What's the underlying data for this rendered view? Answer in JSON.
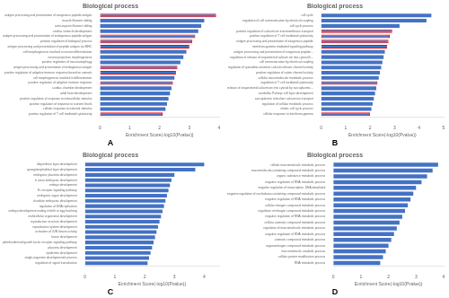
{
  "chart_data": [
    {
      "type": "bar",
      "orientation": "horizontal",
      "title": "Biological process",
      "x_label": "Enrichment Score(-log10(Pvalue))",
      "subtitle": "A",
      "categories": [
        "antigen processing and presentation of exogenous peptide antigen",
        "muscle filament sliding",
        "actin-myosin filament sliding",
        "cardiac ventricle development",
        "antigen processing and presentation of endogenous peptide antigen",
        "positive regulation of biological process",
        "antigen processing and presentation of peptide antigen via MHC",
        "cell morphogenesis involved in neuron differentiation",
        "neuron projection morphogenesis",
        "positive regulation of macroautophagy",
        "antigen processing and presentation of endogenous antigen",
        "positive regulation of adaptive immune response based on somatic",
        "cell morphogenesis involved in differentiation",
        "positive regulation of adaptive immune response",
        "cardiac chamber development",
        "adult heart development",
        "positive regulation of response to extracellular stimulus",
        "positive regulation of response to nutrient levels",
        "cellular response to external stimulus",
        "positive regulation of T cell mediated cytotoxicity"
      ],
      "values": [
        3.9,
        3.5,
        3.4,
        3.3,
        3.2,
        3.1,
        3.0,
        2.9,
        2.8,
        2.7,
        2.6,
        2.55,
        2.5,
        2.45,
        2.4,
        2.35,
        2.3,
        2.25,
        2.2,
        2.1
      ],
      "highlighted": [
        true,
        false,
        false,
        false,
        true,
        true,
        true,
        false,
        false,
        false,
        true,
        true,
        false,
        true,
        false,
        false,
        false,
        false,
        false,
        true
      ],
      "highlight_color": "#ff0000",
      "color": "#4472C4",
      "xlim": [
        0,
        4.0
      ],
      "xticks": [
        0,
        1,
        2,
        3,
        4
      ],
      "grid": false
    },
    {
      "type": "bar",
      "orientation": "horizontal",
      "title": "Biological process",
      "x_label": "Enrichment Score(-log10(Pvalue))",
      "subtitle": "B",
      "categories": [
        "cell cycle",
        "regulation of cell communication by electrical coupling",
        "cell cycle process",
        "positive regulation of calcium ion transmembrane transport",
        "positive regulation of T cell mediated cytotoxicity",
        "antigen processing and presentation of exogenous peptide",
        "interferon-gamma mediated signaling pathway",
        "antigen processing and presentation of exogenous peptide...",
        "regulation of release of sequestered calcium ion into cytosol li...",
        "cell communication by electrical coupling",
        "regulation of ryanodine-sensitive calcium release channel activity",
        "positive regulation of cation channel activity",
        "cellular macromolecule metabolic process",
        "regulation of T cell mediated cytotoxicity",
        "release of sequestered calcium ion into cytosol by sarcoplasmic...",
        "cerebellar Purkinje cell layer development",
        "sarcoplasmic reticulum calcium ion transport",
        "regulation of cellular metabolic process",
        "mitotic cell cycle process",
        "cellular response to interferon-gamma"
      ],
      "values": [
        4.5,
        4.3,
        3.2,
        2.9,
        2.8,
        2.75,
        2.7,
        2.6,
        2.55,
        2.5,
        2.45,
        2.4,
        2.35,
        2.3,
        2.25,
        2.2,
        2.15,
        2.1,
        2.05,
        2.0
      ],
      "highlighted": [
        false,
        false,
        false,
        true,
        true,
        true,
        true,
        false,
        false,
        false,
        false,
        false,
        false,
        true,
        false,
        false,
        false,
        false,
        false,
        true
      ],
      "highlight_color": "#ff0000",
      "color": "#4472C4",
      "xlim": [
        0,
        5.0
      ],
      "xticks": [
        0,
        1,
        2,
        3,
        4,
        5
      ],
      "grid": false
    },
    {
      "type": "bar",
      "orientation": "horizontal",
      "title": "Biological process",
      "x_label": "Enrichment Score(-log10(Pvalue))",
      "subtitle": "C",
      "categories": [
        "labyrinthine layer development",
        "spongiotrophoblast layer development",
        "embryonic placenta development",
        "in utero embryonic development",
        "embryo development",
        "Fc receptor signaling pathway",
        "embryonic organ development",
        "chordate embryonic development",
        "regulation of DNA replication",
        "embryo development ending in birth or egg hatching",
        "multicellular organismal development",
        "reproductive structure development",
        "reproductive system development",
        "activation of JUN kinase activity",
        "tissue development",
        "platelet-derived growth factor receptor signaling pathway",
        "placenta development",
        "epidermis development",
        "single-organism developmental process",
        "regulation of signal transduction"
      ],
      "values": [
        4.0,
        3.7,
        3.0,
        2.9,
        2.85,
        2.8,
        2.75,
        2.7,
        2.65,
        2.6,
        2.55,
        2.5,
        2.45,
        2.4,
        2.35,
        2.3,
        2.25,
        2.2,
        2.15,
        2.1
      ],
      "color": "#4472C4",
      "xlim": [
        0,
        4.5
      ],
      "xticks": [
        0,
        1,
        2,
        3,
        4
      ],
      "grid": false
    },
    {
      "type": "bar",
      "orientation": "horizontal",
      "title": "Biological process",
      "x_label": "Enrichment Score(-log10(Pvalue))",
      "subtitle": "D",
      "categories": [
        "cellular macromolecule metabolic process",
        "macromolecule-containing compound metabolic process",
        "organic substance metabolic process",
        "negative regulation of RNA metabolic process",
        "negative regulation of transcription, DNA-templated",
        "negative regulation of nucleobase-containing compound metabolic process",
        "negative regulation of RNA metabolic process",
        "cellular nitrogen compound metabolic process",
        "regulation of nitrogen compound metabolic process",
        "negative regulation of RNA metabolic process",
        "cellular aromatic compound metabolic process",
        "regulation of macromolecule metabolic process",
        "negative regulation of RNA metabolic process",
        "aromatic compound metabolic process",
        "organonitrogen compound metabolic process",
        "macromolecule catabolic process",
        "cellular protein modification process",
        "RNA metabolic process"
      ],
      "values": [
        3.8,
        3.6,
        3.4,
        3.2,
        3.0,
        2.9,
        2.8,
        2.7,
        2.6,
        2.5,
        2.4,
        2.3,
        2.2,
        2.1,
        2.0,
        1.9,
        1.8,
        1.7
      ],
      "color": "#4472C4",
      "xlim": [
        0,
        4.0
      ],
      "xticks": [
        0,
        1,
        2,
        3,
        4
      ],
      "grid": false
    }
  ]
}
